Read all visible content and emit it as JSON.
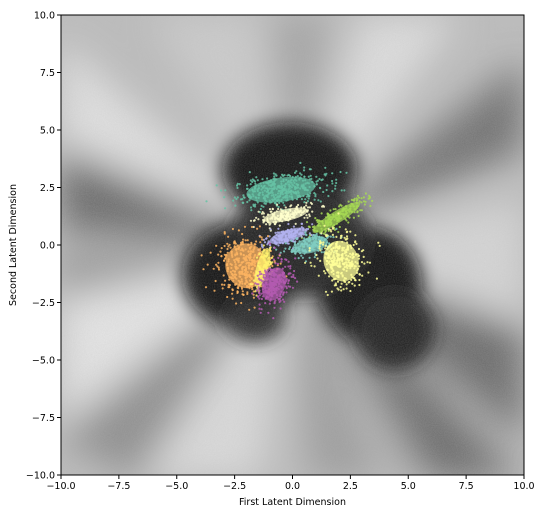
{
  "chart_data": {
    "type": "scatter",
    "title": "",
    "xlabel": "First Latent Dimension",
    "ylabel": "Second Latent Dimension",
    "xlim": [
      -10,
      10
    ],
    "ylim": [
      -10,
      10
    ],
    "xticks": [
      "−10.0",
      "−7.5",
      "−5.0",
      "−2.5",
      "0.0",
      "2.5",
      "5.0",
      "7.5",
      "10.0"
    ],
    "yticks": [
      "10.0",
      "7.5",
      "5.0",
      "2.5",
      "0.0",
      "−2.5",
      "−5.0",
      "−7.5",
      "−10.0"
    ],
    "xtick_values": [
      -10,
      -7.5,
      -5,
      -2.5,
      0,
      2.5,
      5,
      7.5,
      10
    ],
    "ytick_values": [
      10,
      7.5,
      5,
      2.5,
      0,
      -2.5,
      -5,
      -7.5,
      -10
    ],
    "grid": false,
    "background": "grayscale decoded-density map",
    "clusters": [
      {
        "color": "#66c2a5",
        "center": [
          -0.5,
          2.4
        ],
        "spread": [
          2.0,
          0.7
        ],
        "angle": 8,
        "count": 420
      },
      {
        "color": "#ffffcc",
        "center": [
          -0.3,
          1.3
        ],
        "spread": [
          1.3,
          0.35
        ],
        "angle": 12,
        "count": 180
      },
      {
        "color": "#a6d854",
        "center": [
          1.9,
          1.2
        ],
        "spread": [
          1.6,
          0.35
        ],
        "angle": 32,
        "count": 220
      },
      {
        "color": "#b3b3f0",
        "center": [
          -0.2,
          0.4
        ],
        "spread": [
          1.1,
          0.35
        ],
        "angle": 18,
        "count": 170
      },
      {
        "color": "#80cdc1",
        "center": [
          0.8,
          0.0
        ],
        "spread": [
          1.0,
          0.45
        ],
        "angle": 15,
        "count": 190
      },
      {
        "color": "#ffff99",
        "center": [
          2.1,
          -0.7
        ],
        "spread": [
          1.0,
          1.2
        ],
        "angle": 20,
        "count": 330
      },
      {
        "color": "#fdb462",
        "center": [
          -2.0,
          -0.9
        ],
        "spread": [
          1.2,
          1.3
        ],
        "angle": 10,
        "count": 420
      },
      {
        "color": "#fff26e",
        "center": [
          -1.3,
          -1.0
        ],
        "spread": [
          0.35,
          1.2
        ],
        "angle": -15,
        "count": 110
      },
      {
        "color": "#b35ab0",
        "center": [
          -0.8,
          -1.7
        ],
        "spread": [
          0.65,
          1.0
        ],
        "angle": -20,
        "count": 280
      }
    ]
  }
}
